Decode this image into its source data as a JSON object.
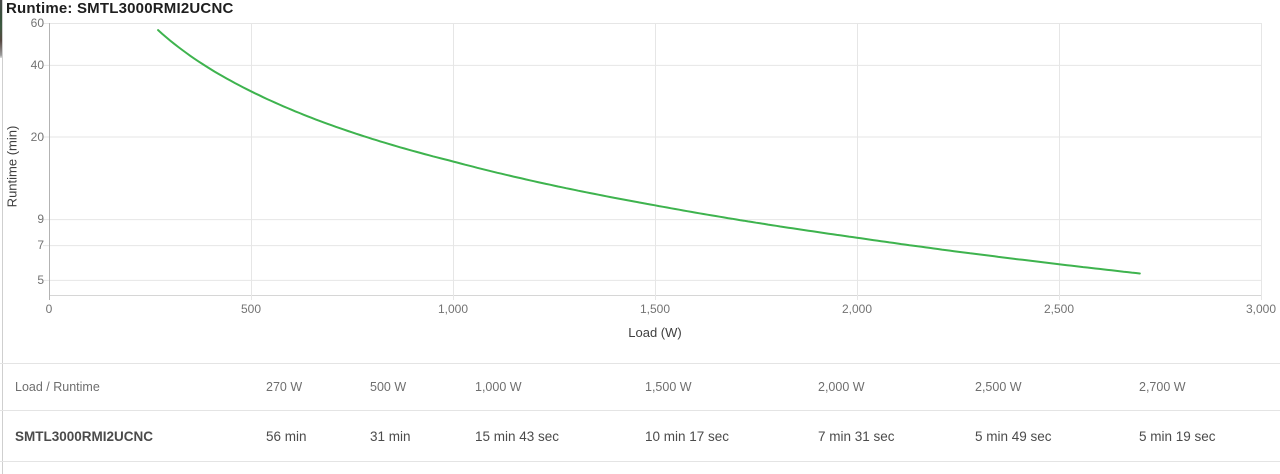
{
  "title": "Runtime: SMTL3000RMI2UCNC",
  "chart_data": {
    "type": "line",
    "title": "Runtime: SMTL3000RMI2UCNC",
    "xlabel": "Load (W)",
    "ylabel": "Runtime (min)",
    "xlim": [
      0,
      3000
    ],
    "x_ticks": [
      0,
      500,
      1000,
      1500,
      2000,
      2500,
      3000
    ],
    "x_tick_labels": [
      "0",
      "500",
      "1,000",
      "1,500",
      "2,000",
      "2,500",
      "3,000"
    ],
    "y_scale": "log",
    "y_ticks": [
      60,
      40,
      20,
      9,
      7,
      5
    ],
    "y_tick_labels": [
      "60",
      "40",
      "20",
      "9",
      "7",
      "5"
    ],
    "grid": true,
    "legend": "none",
    "series": [
      {
        "name": "SMTL3000RMI2UCNC",
        "color": "#3eb34e",
        "points": [
          {
            "load_w": 270,
            "runtime_min": 56.0,
            "label": "56 min"
          },
          {
            "load_w": 500,
            "runtime_min": 31.0,
            "label": "31 min"
          },
          {
            "load_w": 1000,
            "runtime_min": 15.717,
            "label": "15 min 43 sec"
          },
          {
            "load_w": 1500,
            "runtime_min": 10.283,
            "label": "10 min 17 sec"
          },
          {
            "load_w": 2000,
            "runtime_min": 7.517,
            "label": "7 min 31 sec"
          },
          {
            "load_w": 2500,
            "runtime_min": 5.817,
            "label": "5 min 49 sec"
          },
          {
            "load_w": 2700,
            "runtime_min": 5.317,
            "label": "5 min 19 sec"
          }
        ]
      }
    ]
  },
  "table": {
    "headers": [
      "Load / Runtime",
      "270 W",
      "500 W",
      "1,000 W",
      "1,500 W",
      "2,000 W",
      "2,500 W",
      "2,700 W"
    ],
    "rows": [
      [
        "SMTL3000RMI2UCNC",
        "56 min",
        "31 min",
        "15 min 43 sec",
        "10 min 17 sec",
        "7 min 31 sec",
        "5 min 49 sec",
        "5 min 19 sec"
      ]
    ]
  },
  "colors": {
    "curve": "#3eb34e",
    "gridline": "#e6e6e6",
    "baseline": "#d6d6d6",
    "y_axis_line": "#b3b3b3",
    "tick_text": "#737373",
    "axis_title_text": "#3f3f3f"
  }
}
